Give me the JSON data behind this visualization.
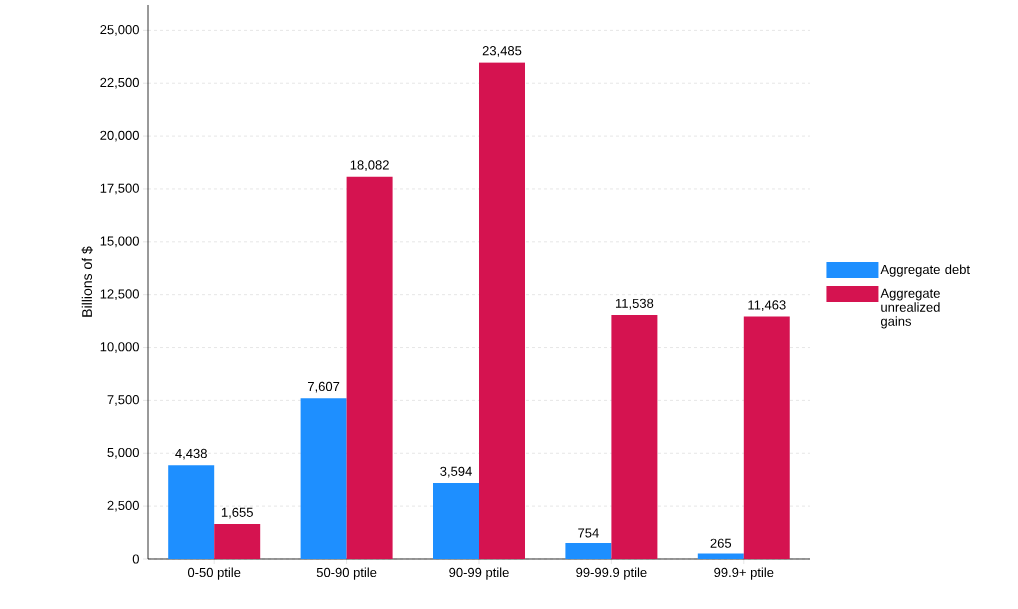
{
  "chart_data": {
    "type": "bar",
    "ylabel": "Billions of $",
    "categories": [
      "0-50 ptile",
      "50-90 ptile",
      "90-99 ptile",
      "99-99.9 ptile",
      "99.9+ ptile"
    ],
    "series": [
      {
        "name": "Aggregate debt",
        "color": "#1e8fff",
        "values": [
          4438,
          7607,
          3594,
          754,
          265
        ],
        "value_labels": [
          "4,438",
          "7,607",
          "3,594",
          "754",
          "265"
        ]
      },
      {
        "name": "Aggregate unrealized gains",
        "color": "#d51350",
        "values": [
          1655,
          18082,
          23485,
          11538,
          11463
        ],
        "value_labels": [
          "1,655",
          "18,082",
          "23,485",
          "11,538",
          "11,463"
        ]
      }
    ],
    "ylim": [
      0,
      26200
    ],
    "yticks": [
      0,
      {
        "value": 2500,
        "label": "2,500"
      },
      {
        "value": 5000,
        "label": "5,000"
      },
      {
        "value": 7500,
        "label": "7,500"
      },
      {
        "value": 10000,
        "label": "10,000"
      },
      {
        "value": 12500,
        "label": "12,500"
      },
      {
        "value": 15000,
        "label": "15,000"
      },
      {
        "value": 17500,
        "label": "17,500"
      },
      {
        "value": 20000,
        "label": "20,000"
      },
      {
        "value": 22500,
        "label": "22,500"
      },
      {
        "value": 25000,
        "label": "25,000"
      }
    ],
    "grid": "y",
    "legend": "right"
  }
}
